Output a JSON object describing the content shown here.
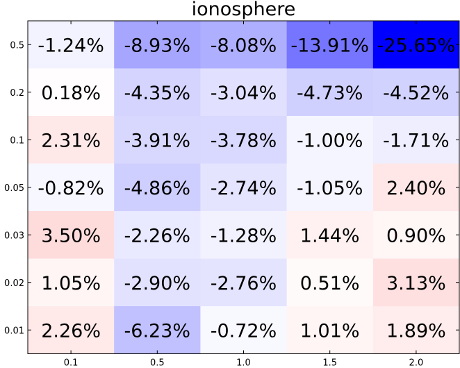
{
  "chart_data": {
    "type": "heatmap",
    "title": "ionosphere",
    "xlabel": "",
    "ylabel": "",
    "x_categories": [
      "0.1",
      "0.5",
      "1.0",
      "1.5",
      "2.0"
    ],
    "y_categories": [
      "0.5",
      "0.2",
      "0.1",
      "0.05",
      "0.03",
      "0.02",
      "0.01"
    ],
    "values": [
      [
        -1.24,
        -8.93,
        -8.08,
        -13.91,
        -25.65
      ],
      [
        0.18,
        -4.35,
        -3.04,
        -4.73,
        -4.52
      ],
      [
        2.31,
        -3.91,
        -3.78,
        -1.0,
        -1.71
      ],
      [
        -0.82,
        -4.86,
        -2.74,
        -1.05,
        2.4
      ],
      [
        3.5,
        -2.26,
        -1.28,
        1.44,
        0.9
      ],
      [
        1.05,
        -2.9,
        -2.76,
        0.51,
        3.13
      ],
      [
        2.26,
        -6.23,
        -0.72,
        1.01,
        1.89
      ]
    ],
    "labels": [
      [
        "-1.24%",
        "-8.93%",
        "-8.08%",
        "-13.91%",
        "-25.65%"
      ],
      [
        "0.18%",
        "-4.35%",
        "-3.04%",
        "-4.73%",
        "-4.52%"
      ],
      [
        "2.31%",
        "-3.91%",
        "-3.78%",
        "-1.00%",
        "-1.71%"
      ],
      [
        "-0.82%",
        "-4.86%",
        "-2.74%",
        "-1.05%",
        "2.40%"
      ],
      [
        "3.50%",
        "-2.26%",
        "-1.28%",
        "1.44%",
        "0.90%"
      ],
      [
        "1.05%",
        "-2.90%",
        "-2.76%",
        "0.51%",
        "3.13%"
      ],
      [
        "2.26%",
        "-6.23%",
        "-0.72%",
        "1.01%",
        "1.89%"
      ]
    ],
    "colormap": {
      "negative": "#0000ff",
      "zero": "#ffffff",
      "positive": "#ff0000",
      "vmin": -25.65,
      "vmax": 25.65
    },
    "grid": false,
    "legend": "none"
  }
}
